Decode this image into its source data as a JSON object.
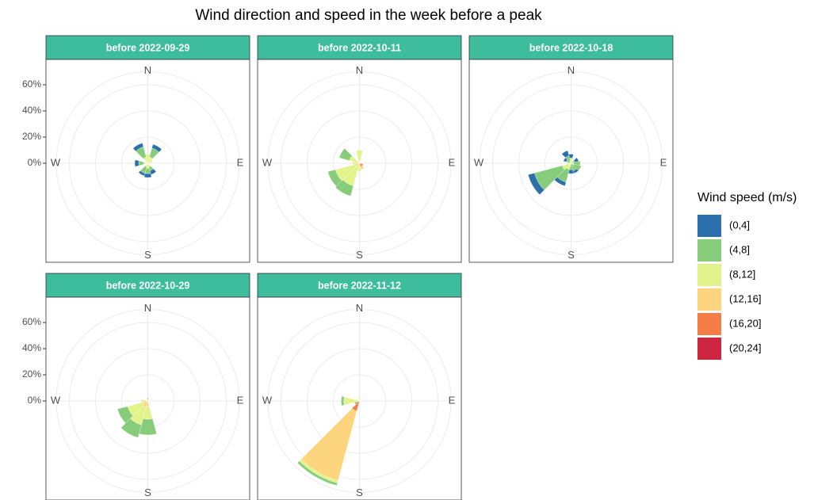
{
  "chart_data": {
    "type": "windrose",
    "title": "Wind direction and speed in the week before a peak",
    "legend_title": "Wind speed (m/s)",
    "direction_labels": [
      "N",
      "E",
      "S",
      "W"
    ],
    "ylim": [
      0,
      70
    ],
    "yticks": [
      {
        "value": 0,
        "label": "0%"
      },
      {
        "value": 20,
        "label": "20%"
      },
      {
        "value": 40,
        "label": "40%"
      },
      {
        "value": 60,
        "label": "60%"
      }
    ],
    "series": [
      {
        "name": "(0,4]",
        "color": "#2b6fad"
      },
      {
        "name": "(4,8]",
        "color": "#86cc7a"
      },
      {
        "name": "(8,12]",
        "color": "#e3f38c"
      },
      {
        "name": "(12,16]",
        "color": "#fdd57e"
      },
      {
        "name": "(16,20]",
        "color": "#f47e46"
      },
      {
        "name": "(20,24]",
        "color": "#cb2540"
      }
    ],
    "facets": [
      {
        "title": "before 2022-09-29",
        "values": [
          [
            0,
            3,
            0,
            0,
            0,
            3,
            3,
            2,
            0,
            3,
            0,
            3
          ],
          [
            0,
            7,
            0,
            0,
            0,
            3,
            4,
            5,
            0,
            4,
            0,
            8
          ],
          [
            5,
            5,
            4,
            0,
            0,
            3,
            4,
            3,
            0,
            3,
            0,
            5
          ],
          [
            2,
            0,
            0,
            0,
            0,
            0,
            0,
            0,
            0,
            0,
            0,
            0
          ],
          [
            0,
            0,
            0,
            0,
            0,
            0,
            0,
            0,
            0,
            0,
            0,
            0
          ],
          [
            0,
            0,
            0,
            0,
            0,
            0,
            0,
            0,
            0,
            0,
            0,
            0
          ]
        ]
      },
      {
        "title": "before 2022-10-11",
        "values": [
          [
            0,
            0,
            0,
            0,
            0,
            0,
            0,
            0,
            0,
            0,
            0,
            0
          ],
          [
            0,
            0,
            0,
            0,
            0,
            0,
            0,
            8,
            6,
            0,
            8,
            0
          ],
          [
            8,
            0,
            0,
            0,
            0,
            0,
            6,
            16,
            16,
            5,
            8,
            0
          ],
          [
            2,
            0,
            0,
            0,
            0,
            2,
            0,
            2,
            3,
            0,
            0,
            0
          ],
          [
            0,
            0,
            0,
            0,
            3,
            3,
            0,
            0,
            0,
            0,
            0,
            0
          ],
          [
            0,
            0,
            0,
            0,
            0,
            0,
            0,
            0,
            0,
            0,
            0,
            0
          ]
        ]
      },
      {
        "title": "before 2022-10-18",
        "values": [
          [
            3,
            0,
            3,
            0,
            0,
            2,
            3,
            3,
            5,
            0,
            2,
            4
          ],
          [
            0,
            0,
            3,
            5,
            6,
            6,
            5,
            10,
            22,
            0,
            4,
            4
          ],
          [
            4,
            0,
            0,
            2,
            2,
            0,
            0,
            5,
            6,
            3,
            0,
            2
          ],
          [
            0,
            0,
            0,
            0,
            0,
            0,
            0,
            0,
            1,
            0,
            0,
            0
          ],
          [
            0,
            0,
            0,
            0,
            0,
            0,
            0,
            0,
            0,
            0,
            0,
            0
          ],
          [
            0,
            0,
            0,
            0,
            0,
            0,
            0,
            0,
            0,
            0,
            0,
            0
          ]
        ]
      },
      {
        "title": "before 2022-10-29",
        "values": [
          [
            0,
            0,
            0,
            0,
            0,
            0,
            0,
            0,
            0,
            0,
            0,
            0
          ],
          [
            0,
            0,
            0,
            0,
            0,
            0,
            12,
            10,
            8,
            0,
            0,
            0
          ],
          [
            0,
            0,
            0,
            0,
            0,
            0,
            10,
            14,
            12,
            5,
            0,
            0
          ],
          [
            0,
            0,
            0,
            0,
            0,
            0,
            4,
            5,
            4,
            0,
            0,
            0
          ],
          [
            2,
            0,
            0,
            0,
            0,
            0,
            0,
            0,
            0,
            0,
            0,
            0
          ],
          [
            0,
            0,
            0,
            0,
            0,
            0,
            0,
            0,
            0,
            0,
            0,
            0
          ]
        ]
      },
      {
        "title": "before 2022-11-12",
        "values": [
          [
            0,
            0,
            0,
            0,
            0,
            0,
            0,
            0,
            0,
            0,
            0,
            0
          ],
          [
            0,
            0,
            0,
            0,
            0,
            0,
            0,
            2,
            4,
            2,
            0,
            0
          ],
          [
            3,
            0,
            0,
            0,
            0,
            0,
            0,
            2,
            0,
            12,
            0,
            0
          ],
          [
            0,
            0,
            0,
            0,
            0,
            0,
            0,
            55,
            0,
            0,
            0,
            0
          ],
          [
            0,
            0,
            0,
            0,
            0,
            0,
            0,
            8,
            0,
            0,
            0,
            0
          ],
          [
            0,
            0,
            0,
            0,
            0,
            0,
            0,
            0,
            0,
            0,
            0,
            0
          ]
        ]
      }
    ]
  }
}
